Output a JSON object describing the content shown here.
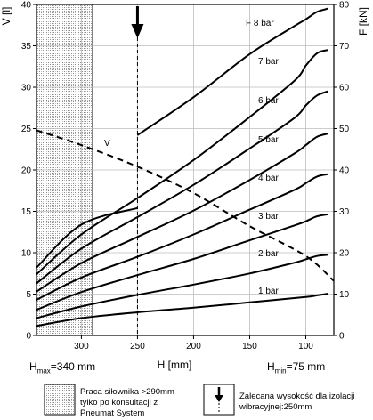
{
  "chart_data": {
    "type": "line",
    "xlabel": "H [mm]",
    "ylabel_left": "V [l]",
    "ylabel_right": "F [kN]",
    "x_ticks": [
      300,
      250,
      200,
      150,
      100
    ],
    "xlim": [
      340,
      75
    ],
    "x_reversed": true,
    "y_left_ticks": [
      0,
      5,
      10,
      15,
      20,
      25,
      30,
      35,
      40
    ],
    "y_left_lim": [
      0,
      40
    ],
    "y_right_ticks": [
      0,
      10,
      20,
      30,
      40,
      50,
      60,
      70,
      80
    ],
    "y_right_lim": [
      0,
      80
    ],
    "grid": true,
    "series": [
      {
        "name": "1 bar",
        "axis": "right",
        "x": [
          340,
          300,
          250,
          200,
          150,
          100,
          90,
          80
        ],
        "values": [
          2.3,
          4.2,
          5.6,
          6.7,
          8.0,
          9.3,
          9.7,
          10.1
        ]
      },
      {
        "name": "2 bar",
        "axis": "right",
        "x": [
          340,
          300,
          250,
          200,
          150,
          110,
          100,
          90,
          80
        ],
        "values": [
          4.2,
          7.0,
          9.8,
          12.3,
          15.0,
          17.6,
          18.4,
          19.2,
          19.5
        ]
      },
      {
        "name": "3 bar",
        "axis": "right",
        "x": [
          340,
          300,
          250,
          200,
          150,
          110,
          100,
          90,
          80
        ],
        "values": [
          6.2,
          10.5,
          14.6,
          18.5,
          23.0,
          26.6,
          27.6,
          28.8,
          29.3
        ]
      },
      {
        "name": "4 bar",
        "axis": "right",
        "x": [
          340,
          300,
          250,
          200,
          150,
          110,
          100,
          90,
          80
        ],
        "values": [
          8.6,
          14.0,
          19.0,
          24.4,
          30.4,
          35.2,
          36.8,
          38.4,
          39.0
        ]
      },
      {
        "name": "5 bar",
        "axis": "right",
        "x": [
          340,
          300,
          250,
          200,
          150,
          110,
          100,
          90,
          80
        ],
        "values": [
          10.6,
          17.5,
          23.8,
          30.2,
          37.6,
          44.0,
          46.0,
          48.0,
          48.8
        ]
      },
      {
        "name": "6 bar",
        "axis": "right",
        "x": [
          340,
          300,
          250,
          200,
          150,
          110,
          100,
          90,
          80
        ],
        "values": [
          12.6,
          21.0,
          28.6,
          36.4,
          45.2,
          52.6,
          55.6,
          58.0,
          59.0
        ]
      },
      {
        "name": "7 bar",
        "axis": "right",
        "x": [
          340,
          300,
          250,
          200,
          150,
          110,
          100,
          90,
          80
        ],
        "values": [
          14.8,
          24.4,
          33.2,
          42.4,
          52.8,
          61.6,
          65.2,
          68.2,
          69.0
        ]
      },
      {
        "name": "F 8 bar",
        "axis": "right",
        "x": [
          340,
          300,
          250,
          200,
          150,
          110,
          100,
          90,
          80
        ],
        "values": [
          16.4,
          26.8,
          48.4,
          57.6,
          68.0,
          74.8,
          76.4,
          78.2,
          79.0
        ]
      },
      {
        "name": "V",
        "axis": "left",
        "style": "dashed",
        "x": [
          340,
          300,
          250,
          200,
          150,
          100,
          75
        ],
        "values": [
          24.8,
          23.0,
          20.4,
          17.2,
          13.2,
          9.6,
          6.6
        ]
      }
    ],
    "hatched_region_x": [
      340,
      290
    ],
    "vertical_marker_x": 250
  },
  "annotations": {
    "hmax_prefix": "H",
    "hmax_sub": "max",
    "hmax_value": "=340 mm",
    "hmin_prefix": "H",
    "hmin_sub": "min",
    "hmin_value": "=75 mm"
  },
  "legend": {
    "hatched_text_1": "Praca siłownika >290mm",
    "hatched_text_2": "tylko po konsultacji z",
    "hatched_text_3": "Pneumat System",
    "arrow_text_1": "Zalecana wysokość dla izolacji",
    "arrow_text_2": "wibracyjnej:250mm"
  }
}
